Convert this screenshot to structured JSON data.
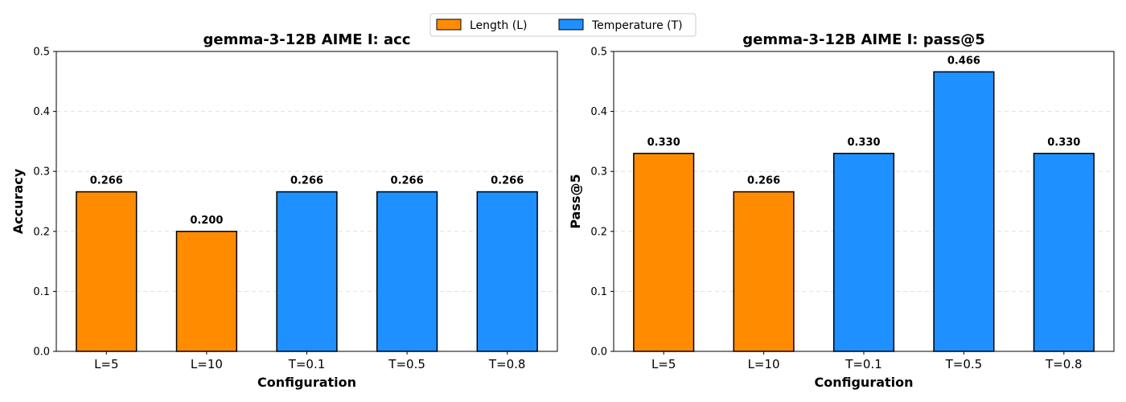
{
  "legend": {
    "entries": [
      {
        "label": "Length (L)",
        "color": "#FF8C00"
      },
      {
        "label": "Temperature (T)",
        "color": "#1E90FF"
      }
    ]
  },
  "chart_data": [
    {
      "type": "bar",
      "title": "gemma-3-12B AIME I: acc",
      "xlabel": "Configuration",
      "ylabel": "Accuracy",
      "ylim": [
        0,
        0.5
      ],
      "yticks": [
        "0.0",
        "0.1",
        "0.2",
        "0.3",
        "0.4",
        "0.5"
      ],
      "grid": "y-dashed",
      "categories": [
        "L=5",
        "L=10",
        "T=0.1",
        "T=0.5",
        "T=0.8"
      ],
      "values": [
        0.266,
        0.2,
        0.266,
        0.266,
        0.266
      ],
      "labels": [
        "0.266",
        "0.200",
        "0.266",
        "0.266",
        "0.266"
      ],
      "groups": [
        "Length (L)",
        "Length (L)",
        "Temperature (T)",
        "Temperature (T)",
        "Temperature (T)"
      ]
    },
    {
      "type": "bar",
      "title": "gemma-3-12B AIME I: pass@5",
      "xlabel": "Configuration",
      "ylabel": "Pass@5",
      "ylim": [
        0,
        0.5
      ],
      "yticks": [
        "0.0",
        "0.1",
        "0.2",
        "0.3",
        "0.4",
        "0.5"
      ],
      "grid": "y-dashed",
      "categories": [
        "L=5",
        "L=10",
        "T=0.1",
        "T=0.5",
        "T=0.8"
      ],
      "values": [
        0.33,
        0.266,
        0.33,
        0.466,
        0.33
      ],
      "labels": [
        "0.330",
        "0.266",
        "0.330",
        "0.466",
        "0.330"
      ],
      "groups": [
        "Length (L)",
        "Length (L)",
        "Temperature (T)",
        "Temperature (T)",
        "Temperature (T)"
      ]
    }
  ]
}
